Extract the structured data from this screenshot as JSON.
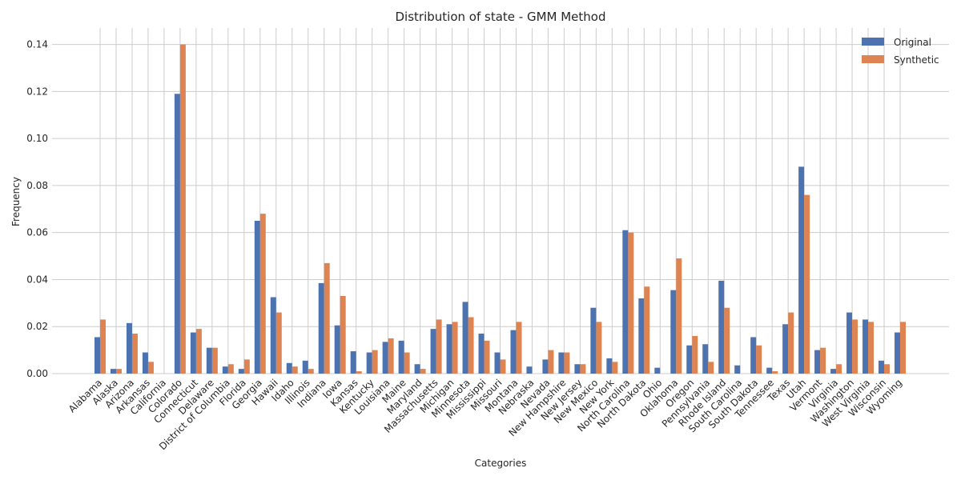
{
  "chart_data": {
    "type": "bar",
    "title": "Distribution of state - GMM Method",
    "xlabel": "Categories",
    "ylabel": "Frequency",
    "ylim": [
      0,
      0.147
    ],
    "yticks": [
      0.0,
      0.02,
      0.04,
      0.06,
      0.08,
      0.1,
      0.12,
      0.14
    ],
    "ytick_labels": [
      "0.00",
      "0.02",
      "0.04",
      "0.06",
      "0.08",
      "0.10",
      "0.12",
      "0.14"
    ],
    "grid": true,
    "legend": "top-right",
    "categories": [
      "Alabama",
      "Alaska",
      "Arizona",
      "Arkansas",
      "California",
      "Colorado",
      "Connecticut",
      "Delaware",
      "District of Columbia",
      "Florida",
      "Georgia",
      "Hawaii",
      "Idaho",
      "Illinois",
      "Indiana",
      "Iowa",
      "Kansas",
      "Kentucky",
      "Louisiana",
      "Maine",
      "Maryland",
      "Massachusetts",
      "Michigan",
      "Minnesota",
      "Mississippi",
      "Missouri",
      "Montana",
      "Nebraska",
      "Nevada",
      "New Hampshire",
      "New Jersey",
      "New Mexico",
      "New York",
      "North Carolina",
      "North Dakota",
      "Ohio",
      "Oklahoma",
      "Oregon",
      "Pennsylvania",
      "Rhode Island",
      "South Carolina",
      "South Dakota",
      "Tennessee",
      "Texas",
      "Utah",
      "Vermont",
      "Virginia",
      "Washington",
      "West Virginia",
      "Wisconsin",
      "Wyoming"
    ],
    "series": [
      {
        "name": "Original",
        "color": "#4c72b0",
        "values": [
          0.0155,
          0.002,
          0.0215,
          0.009,
          0.0,
          0.119,
          0.0175,
          0.011,
          0.003,
          0.002,
          0.065,
          0.0325,
          0.0045,
          0.0055,
          0.0385,
          0.0205,
          0.0095,
          0.009,
          0.0135,
          0.014,
          0.004,
          0.019,
          0.021,
          0.0305,
          0.017,
          0.009,
          0.0185,
          0.003,
          0.006,
          0.009,
          0.004,
          0.028,
          0.0065,
          0.061,
          0.032,
          0.0025,
          0.0355,
          0.012,
          0.0125,
          0.0395,
          0.0035,
          0.0155,
          0.0025,
          0.021,
          0.088,
          0.01,
          0.002,
          0.026,
          0.023,
          0.0055,
          0.0175
        ]
      },
      {
        "name": "Synthetic",
        "color": "#dd8452",
        "values": [
          0.023,
          0.002,
          0.017,
          0.005,
          0.0,
          0.14,
          0.019,
          0.011,
          0.004,
          0.006,
          0.068,
          0.026,
          0.003,
          0.002,
          0.047,
          0.033,
          0.001,
          0.01,
          0.015,
          0.009,
          0.002,
          0.023,
          0.022,
          0.024,
          0.014,
          0.006,
          0.022,
          0.0,
          0.01,
          0.009,
          0.004,
          0.022,
          0.005,
          0.06,
          0.037,
          0.0,
          0.049,
          0.016,
          0.005,
          0.028,
          0.0,
          0.012,
          0.001,
          0.026,
          0.076,
          0.011,
          0.004,
          0.023,
          0.022,
          0.004,
          0.022
        ]
      }
    ]
  }
}
